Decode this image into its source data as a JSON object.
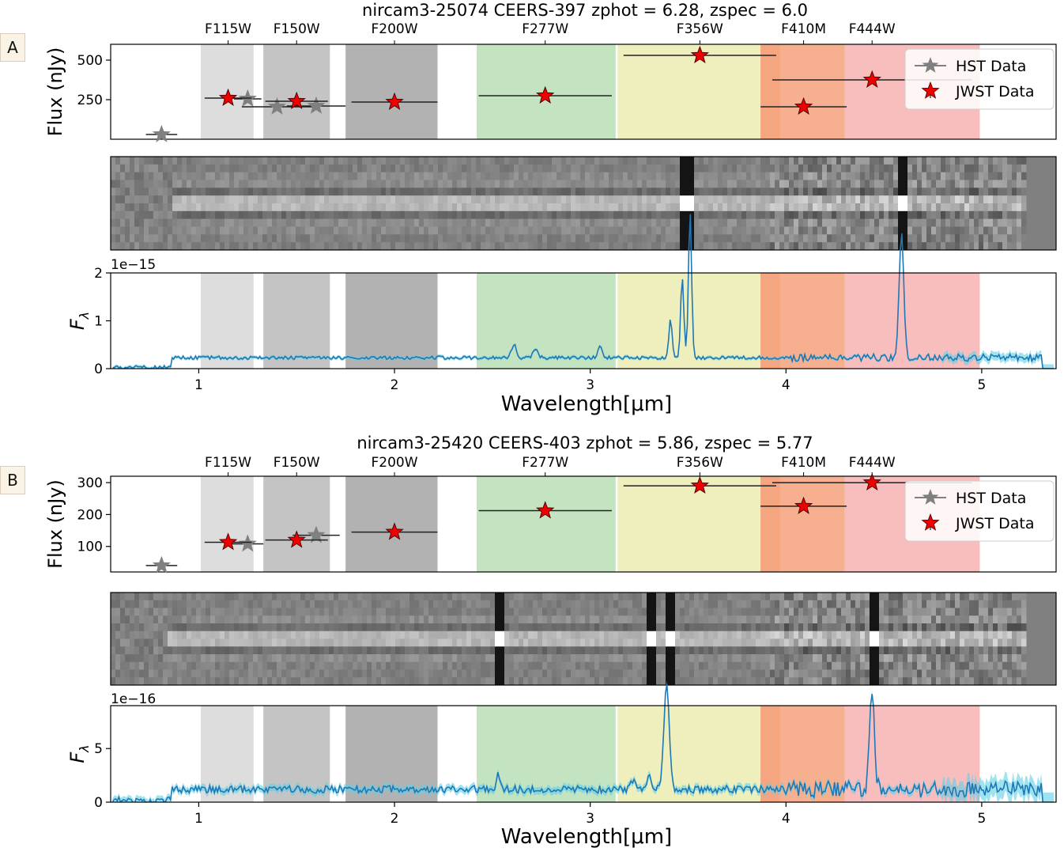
{
  "chart_data": [
    {
      "panel_label": "A",
      "title": "nircam3-25074  CEERS-397 zphot = 6.28, zspec = 6.0",
      "type": "scatter",
      "photometry": {
        "ylabel": "Flux (nJy)",
        "ylim": [
          0,
          600
        ],
        "yticks": [
          250,
          500
        ],
        "legend": [
          "HST Data",
          "JWST Data"
        ],
        "legend_position": "top-right",
        "hst": [
          {
            "x": 0.81,
            "xerr": 0.08,
            "y": 30
          },
          {
            "x": 1.25,
            "xerr": 0.07,
            "y": 255
          },
          {
            "x": 1.4,
            "xerr": 0.18,
            "y": 205
          },
          {
            "x": 1.6,
            "xerr": 0.15,
            "y": 210
          }
        ],
        "jwst": [
          {
            "x": 1.15,
            "xerr": 0.12,
            "y": 260,
            "filter": "F115W"
          },
          {
            "x": 1.5,
            "xerr": 0.16,
            "y": 240,
            "filter": "F150W"
          },
          {
            "x": 2.0,
            "xerr": 0.22,
            "y": 235,
            "filter": "F200W"
          },
          {
            "x": 2.77,
            "xerr": 0.34,
            "y": 275,
            "filter": "F277W"
          },
          {
            "x": 3.56,
            "xerr": 0.39,
            "y": 530,
            "filter": "F356W"
          },
          {
            "x": 4.09,
            "xerr": 0.22,
            "y": 205,
            "filter": "F410M"
          },
          {
            "x": 4.44,
            "xerr": 0.51,
            "y": 375,
            "filter": "F444W"
          }
        ]
      },
      "spectrum": {
        "ylabel": "F_λ",
        "ylim": [
          0,
          2
        ],
        "yticks": [
          0,
          1,
          2
        ],
        "scale_label": "1e−15",
        "continuum": 0.23,
        "noise_amp": 0.035,
        "lines": [
          {
            "x": 2.61,
            "h": 0.28,
            "w": 0.012
          },
          {
            "x": 2.72,
            "h": 0.18,
            "w": 0.012
          },
          {
            "x": 3.05,
            "h": 0.27,
            "w": 0.01
          },
          {
            "x": 3.41,
            "h": 0.85,
            "w": 0.008
          },
          {
            "x": 3.47,
            "h": 1.7,
            "w": 0.008
          },
          {
            "x": 3.51,
            "h": 3.1,
            "w": 0.008
          },
          {
            "x": 4.59,
            "h": 2.6,
            "w": 0.012
          }
        ],
        "x_start": 0.56,
        "x_end": 5.37
      },
      "image": {
        "seed": 7
      }
    },
    {
      "panel_label": "B",
      "title": "nircam3-25420  CEERS-403 zphot = 5.86, zspec = 5.77",
      "type": "scatter",
      "photometry": {
        "ylabel": "Flux (nJy)",
        "ylim": [
          20,
          320
        ],
        "yticks": [
          100,
          200,
          300
        ],
        "legend": [
          "HST Data",
          "JWST Data"
        ],
        "legend_position": "top-right",
        "hst": [
          {
            "x": 0.81,
            "xerr": 0.08,
            "y": 40
          },
          {
            "x": 1.25,
            "xerr": 0.08,
            "y": 108
          },
          {
            "x": 1.6,
            "xerr": 0.12,
            "y": 135
          }
        ],
        "jwst": [
          {
            "x": 1.15,
            "xerr": 0.12,
            "y": 113,
            "filter": "F115W"
          },
          {
            "x": 1.5,
            "xerr": 0.16,
            "y": 120,
            "filter": "F150W"
          },
          {
            "x": 2.0,
            "xerr": 0.22,
            "y": 145,
            "filter": "F200W"
          },
          {
            "x": 2.77,
            "xerr": 0.34,
            "y": 212,
            "filter": "F277W"
          },
          {
            "x": 3.56,
            "xerr": 0.39,
            "y": 290,
            "filter": "F356W"
          },
          {
            "x": 4.09,
            "xerr": 0.22,
            "y": 226,
            "filter": "F410M"
          },
          {
            "x": 4.44,
            "xerr": 0.51,
            "y": 300,
            "filter": "F444W"
          }
        ]
      },
      "spectrum": {
        "ylabel": "F_λ",
        "ylim": [
          0,
          9
        ],
        "yticks": [
          0,
          5
        ],
        "scale_label": "1e−16",
        "continuum": 1.2,
        "noise_amp": 0.35,
        "lines": [
          {
            "x": 2.53,
            "h": 1.3,
            "w": 0.01
          },
          {
            "x": 3.22,
            "h": 1.0,
            "w": 0.01
          },
          {
            "x": 3.3,
            "h": 1.6,
            "w": 0.01
          },
          {
            "x": 3.39,
            "h": 10.0,
            "w": 0.014
          },
          {
            "x": 4.44,
            "h": 9.5,
            "w": 0.012
          }
        ],
        "x_start": 0.56,
        "x_end": 5.37
      },
      "image": {
        "seed": 11
      }
    }
  ],
  "shared": {
    "xlabel": "Wavelength[μm]",
    "xlim": [
      0.55,
      5.38
    ],
    "xticks": [
      1,
      2,
      3,
      4,
      5
    ],
    "filters": [
      {
        "name": "F115W",
        "lo": 1.01,
        "hi": 1.28,
        "center": 1.15,
        "color": "#dddddd"
      },
      {
        "name": "F150W",
        "lo": 1.33,
        "hi": 1.67,
        "center": 1.5,
        "color": "#c4c4c4"
      },
      {
        "name": "F200W",
        "lo": 1.75,
        "hi": 2.22,
        "center": 2.0,
        "color": "#b2b2b2"
      },
      {
        "name": "F277W",
        "lo": 2.42,
        "hi": 3.13,
        "center": 2.77,
        "color": "#c4e3c0"
      },
      {
        "name": "F356W",
        "lo": 3.14,
        "hi": 3.87,
        "center": 3.56,
        "color": "#efefbe"
      },
      {
        "name": "F410M",
        "lo": 3.87,
        "hi": 4.3,
        "center": 4.09,
        "color": "#f7b08f"
      },
      {
        "name": "F444W",
        "lo": 4.3,
        "hi": 4.99,
        "center": 4.44,
        "color": "#f8bebe"
      }
    ],
    "colors": {
      "spectrum": "#1f77b4",
      "spectrum_err": "#5fd0e8",
      "jwst_star": "#ee0000",
      "hst_star": "#808080",
      "f410m_overlap": "#f3a27a"
    }
  }
}
